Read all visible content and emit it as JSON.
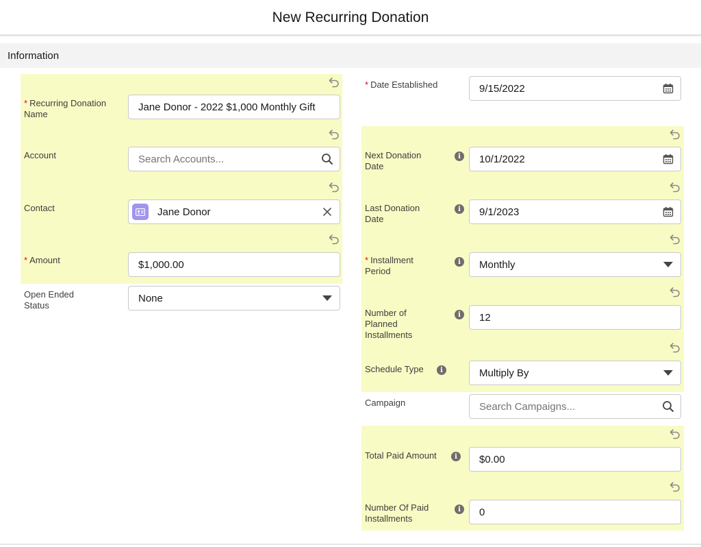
{
  "modal": {
    "title": "New Recurring Donation"
  },
  "section": {
    "title": "Information"
  },
  "left": {
    "name": {
      "label": "Recurring Donation Name",
      "value": "Jane Donor - 2022 $1,000 Monthly Gift"
    },
    "account": {
      "label": "Account",
      "placeholder": "Search Accounts..."
    },
    "contact": {
      "label": "Contact",
      "value": "Jane Donor"
    },
    "amount": {
      "label": "Amount",
      "value": "$1,000.00"
    },
    "open_ended": {
      "label": "Open Ended Status",
      "value": "None"
    }
  },
  "right": {
    "date_established": {
      "label": "Date Established",
      "value": "9/15/2022"
    },
    "next_donation": {
      "label": "Next Donation Date",
      "value": "10/1/2022"
    },
    "last_donation": {
      "label": "Last Donation Date",
      "value": "9/1/2023"
    },
    "installment_period": {
      "label": "Installment Period",
      "value": "Monthly"
    },
    "planned_installments": {
      "label": "Number of Planned Installments",
      "value": "12"
    },
    "schedule_type": {
      "label": "Schedule Type",
      "value": "Multiply By"
    },
    "campaign": {
      "label": "Campaign",
      "placeholder": "Search Campaigns..."
    },
    "total_paid": {
      "label": "Total Paid Amount",
      "value": "$0.00"
    },
    "paid_installments": {
      "label": "Number Of Paid Installments",
      "value": "0"
    }
  },
  "icons": {
    "undo": "undo-icon",
    "info": "info-icon",
    "calendar": "calendar-icon",
    "search": "search-icon",
    "clear": "close-icon",
    "dropdown": "chevron-down-icon",
    "contact": "contact-icon"
  },
  "colors": {
    "highlight": "#f9fbc5",
    "required": "#ea001e",
    "contact_icon": "#a094ed"
  }
}
